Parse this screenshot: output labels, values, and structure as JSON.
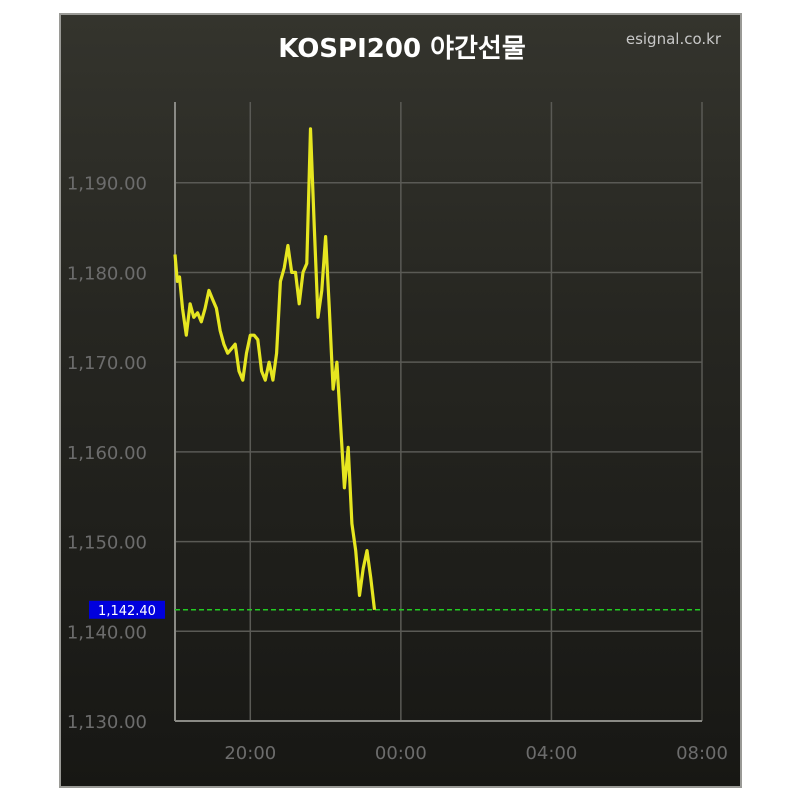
{
  "chart_data": {
    "type": "line",
    "title": "KOSPI200 야간선물",
    "brand": "esignal.co.kr",
    "x_ticks": [
      "20:00",
      "00:00",
      "04:00",
      "08:00"
    ],
    "y_ticks": [
      "1,130.00",
      "1,140.00",
      "1,150.00",
      "1,160.00",
      "1,170.00",
      "1,180.00",
      "1,190.00"
    ],
    "ylim": [
      1130,
      1199
    ],
    "xlim_hours_from_session_start": [
      0,
      14
    ],
    "last_value_label": "1,142.40",
    "last_value": 1142.4,
    "grid": true,
    "colors": {
      "line": "#e6e620",
      "reference_line": "#22cc22",
      "label_bg": "#0000dd"
    },
    "series": [
      {
        "x": [
          0.0,
          0.06,
          0.12,
          0.2,
          0.3,
          0.4,
          0.5,
          0.6,
          0.7,
          0.8,
          0.9,
          1.0,
          1.1,
          1.2,
          1.3,
          1.4,
          1.5,
          1.6,
          1.7,
          1.8,
          1.9,
          2.0,
          2.1,
          2.2,
          2.3,
          2.4,
          2.5,
          2.6,
          2.7,
          2.8,
          2.9,
          3.0,
          3.1,
          3.2,
          3.3,
          3.4,
          3.5,
          3.6,
          3.7,
          3.8,
          3.9,
          4.0,
          4.1,
          4.2,
          4.3,
          4.4,
          4.5,
          4.6,
          4.7,
          4.8,
          4.9,
          5.0,
          5.1,
          5.2,
          5.3,
          5.4,
          5.5,
          5.6,
          5.7,
          5.8,
          5.9,
          6.0,
          6.1,
          6.2,
          6.3,
          6.4,
          6.5,
          6.6,
          6.7,
          6.8
        ],
        "values": [
          1182,
          1179,
          1179.5,
          1176,
          1173,
          1176.5,
          1175,
          1175.5,
          1174.5,
          1176,
          1178,
          1177,
          1176,
          1173.5,
          1172,
          1171,
          1171.5,
          1172,
          1169,
          1168,
          1171,
          1173,
          1173,
          1172.5,
          1169,
          1168,
          1170,
          1168,
          1171,
          1179,
          1180.5,
          1183,
          1180,
          1180,
          1176.5,
          1180,
          1181,
          1196,
          1185,
          1175,
          1178,
          1184,
          1176,
          1167,
          1170,
          1163,
          1156,
          1160.5,
          1152,
          1149,
          1144,
          1147,
          1149,
          1146,
          1142.4,
          1142.4,
          1142.4,
          1142.4,
          1142.4,
          1142.4,
          1142.4,
          1142.4,
          1142.4,
          1142.4,
          1142.4,
          1142.4,
          1142.4,
          1142.4,
          1142.4,
          1142.4
        ]
      }
    ]
  }
}
